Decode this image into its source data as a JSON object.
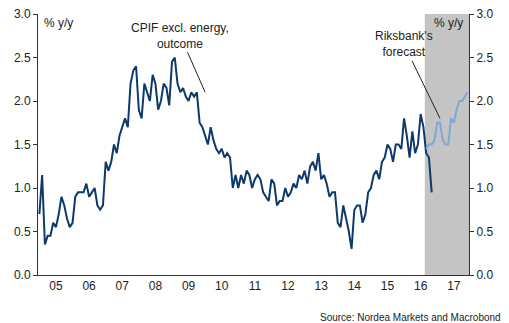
{
  "chart_data": {
    "type": "line",
    "categories": [
      null,
      null,
      null,
      null,
      null,
      null,
      "05",
      null,
      null,
      null,
      null,
      null,
      null,
      null,
      null,
      null,
      null,
      null,
      "06",
      null,
      null,
      null,
      null,
      null,
      null,
      null,
      null,
      null,
      null,
      null,
      "07",
      null,
      null,
      null,
      null,
      null,
      null,
      null,
      null,
      null,
      null,
      null,
      "08",
      null,
      null,
      null,
      null,
      null,
      null,
      null,
      null,
      null,
      null,
      null,
      "09",
      null,
      null,
      null,
      null,
      null,
      null,
      null,
      null,
      null,
      null,
      null,
      "10",
      null,
      null,
      null,
      null,
      null,
      null,
      null,
      null,
      null,
      null,
      null,
      "11",
      null,
      null,
      null,
      null,
      null,
      null,
      null,
      null,
      null,
      null,
      null,
      "12",
      null,
      null,
      null,
      null,
      null,
      null,
      null,
      null,
      null,
      null,
      null,
      "13",
      null,
      null,
      null,
      null,
      null,
      null,
      null,
      null,
      null,
      null,
      null,
      "14",
      null,
      null,
      null,
      null,
      null,
      null,
      null,
      null,
      null,
      null,
      null,
      "15",
      null,
      null,
      null,
      null,
      null,
      null,
      null,
      null,
      null,
      null,
      null,
      "16",
      null,
      null,
      null,
      null,
      null,
      null,
      null,
      null,
      null,
      null,
      null,
      "17",
      null,
      null,
      null,
      null,
      null
    ],
    "series": [
      {
        "name": "CPIF excl. energy, outcome",
        "color": "#0d3a6b",
        "values": [
          0.7,
          1.15,
          0.35,
          0.45,
          0.45,
          0.6,
          0.55,
          0.7,
          0.9,
          0.8,
          0.65,
          0.55,
          0.6,
          0.9,
          0.95,
          0.95,
          0.95,
          1.05,
          0.9,
          0.95,
          1.0,
          0.8,
          0.75,
          0.8,
          1.3,
          1.2,
          1.3,
          1.5,
          1.4,
          1.6,
          1.7,
          1.8,
          1.7,
          2.2,
          2.35,
          2.4,
          1.9,
          1.8,
          2.2,
          2.1,
          2.0,
          2.3,
          2.2,
          1.9,
          2.0,
          2.2,
          2.15,
          1.95,
          2.45,
          2.5,
          2.2,
          2.1,
          2.15,
          2.05,
          2.0,
          2.1,
          2.05,
          2.1,
          1.75,
          1.7,
          1.6,
          1.5,
          1.7,
          1.55,
          1.45,
          1.4,
          1.45,
          1.35,
          1.4,
          1.35,
          1.0,
          1.15,
          1.0,
          1.15,
          1.05,
          1.2,
          1.15,
          1.0,
          1.1,
          1.15,
          1.1,
          0.95,
          0.9,
          0.85,
          1.1,
          1.05,
          0.8,
          0.85,
          0.85,
          1.0,
          0.9,
          0.95,
          1.05,
          1.0,
          1.15,
          1.1,
          1.2,
          1.05,
          1.25,
          1.3,
          1.2,
          1.4,
          1.1,
          1.15,
          1.05,
          0.9,
          0.95,
          0.95,
          0.6,
          0.55,
          0.8,
          0.65,
          0.5,
          0.3,
          0.75,
          0.8,
          0.8,
          0.6,
          0.7,
          0.95,
          1.0,
          1.15,
          1.2,
          1.1,
          1.3,
          1.35,
          1.5,
          1.45,
          1.3,
          1.5,
          1.5,
          1.45,
          1.8,
          1.6,
          1.35,
          1.65,
          1.4,
          1.5,
          1.85,
          1.7,
          1.4,
          1.35,
          0.95,
          null,
          null,
          null,
          null,
          null,
          null,
          null,
          null,
          null,
          null,
          null,
          null,
          null
        ]
      },
      {
        "name": "Riksbank's forecast",
        "color": "#7fa7d8",
        "values": [
          null,
          null,
          null,
          null,
          null,
          null,
          null,
          null,
          null,
          null,
          null,
          null,
          null,
          null,
          null,
          null,
          null,
          null,
          null,
          null,
          null,
          null,
          null,
          null,
          null,
          null,
          null,
          null,
          null,
          null,
          null,
          null,
          null,
          null,
          null,
          null,
          null,
          null,
          null,
          null,
          null,
          null,
          null,
          null,
          null,
          null,
          null,
          null,
          null,
          null,
          null,
          null,
          null,
          null,
          null,
          null,
          null,
          null,
          null,
          null,
          null,
          null,
          null,
          null,
          null,
          null,
          null,
          null,
          null,
          null,
          null,
          null,
          null,
          null,
          null,
          null,
          null,
          null,
          null,
          null,
          null,
          null,
          null,
          null,
          null,
          null,
          null,
          null,
          null,
          null,
          null,
          null,
          null,
          null,
          null,
          null,
          null,
          null,
          null,
          null,
          null,
          null,
          null,
          null,
          null,
          null,
          null,
          null,
          null,
          null,
          null,
          null,
          null,
          null,
          null,
          null,
          null,
          null,
          null,
          null,
          null,
          null,
          null,
          null,
          null,
          null,
          null,
          null,
          null,
          null,
          null,
          null,
          null,
          null,
          null,
          null,
          null,
          null,
          null,
          null,
          1.45,
          1.5,
          1.5,
          1.55,
          1.75,
          1.75,
          1.55,
          1.5,
          1.5,
          1.8,
          1.75,
          1.9,
          2.0,
          2.0,
          2.05,
          2.1
        ]
      }
    ],
    "ylim": [
      0,
      3
    ],
    "yticks": [
      {
        "value": 0,
        "label": "0.0"
      },
      {
        "value": 0.5,
        "label": "0.5"
      },
      {
        "value": 1,
        "label": "1.0"
      },
      {
        "value": 1.5,
        "label": "1.5"
      },
      {
        "value": 2,
        "label": "2.0"
      },
      {
        "value": 2.5,
        "label": "2.5"
      },
      {
        "value": 3,
        "label": "3.0"
      }
    ],
    "y2lim": [
      0,
      3
    ],
    "y2ticks": [
      {
        "value": 0,
        "label": "0.0"
      },
      {
        "value": 0.5,
        "label": "0.5"
      },
      {
        "value": 1,
        "label": "1.0"
      },
      {
        "value": 1.5,
        "label": "1.5"
      },
      {
        "value": 2,
        "label": "2.0"
      },
      {
        "value": 2.5,
        "label": "2.5"
      },
      {
        "value": 3,
        "label": "3.0"
      }
    ],
    "y_label": "% y/y",
    "y2_label": "% y/y",
    "annotations": [
      "CPIF excl. energy,\noutcome",
      "Riksbank's\nforecast"
    ],
    "source": "Source: Nordea Markets and Macrobond",
    "grid": false
  }
}
